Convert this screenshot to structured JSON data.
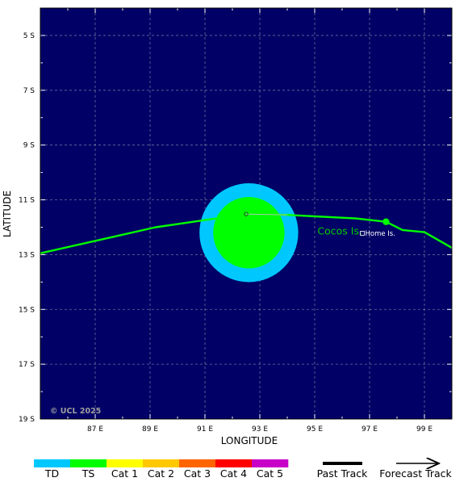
{
  "map": {
    "background_color": "#000066",
    "grid_color": "#c8c8c8",
    "lon_range": [
      85,
      100
    ],
    "lat_range": [
      -19,
      -4
    ],
    "x_axis_title": "LONGITUDE",
    "y_axis_title": "LATITUDE",
    "lon_ticks": [
      {
        "value": 87,
        "label": "87 E"
      },
      {
        "value": 89,
        "label": "89 E"
      },
      {
        "value": 91,
        "label": "91 E"
      },
      {
        "value": 93,
        "label": "93 E"
      },
      {
        "value": 95,
        "label": "95 E"
      },
      {
        "value": 97,
        "label": "97 E"
      },
      {
        "value": 99,
        "label": "99 E"
      }
    ],
    "lat_ticks": [
      {
        "value": -5,
        "label": "5 S"
      },
      {
        "value": -7,
        "label": "7 S"
      },
      {
        "value": -9,
        "label": "9 S"
      },
      {
        "value": -11,
        "label": "11 S"
      },
      {
        "value": -13,
        "label": "13 S"
      },
      {
        "value": -15,
        "label": "15 S"
      },
      {
        "value": -17,
        "label": "17 S"
      },
      {
        "value": -19,
        "label": "19 S"
      }
    ],
    "copyright": "© UCL 2025",
    "copyright_color": "#a0a0a0"
  },
  "storm": {
    "center": {
      "lon": 92.6,
      "lat": -12.2
    },
    "td_radius_deg": 1.8,
    "ts_radius_deg": 1.3,
    "td_color": "#00c8ff",
    "ts_color": "#00ff00",
    "track_color": "#00ff00",
    "track_points": [
      {
        "lon": 85.0,
        "lat": -12.95
      },
      {
        "lon": 89.2,
        "lat": -12.0
      },
      {
        "lon": 92.5,
        "lat": -11.52
      },
      {
        "lon": 94.0,
        "lat": -11.55
      },
      {
        "lon": 96.5,
        "lat": -11.68
      },
      {
        "lon": 97.6,
        "lat": -11.8
      },
      {
        "lon": 98.2,
        "lat": -12.1
      },
      {
        "lon": 99.0,
        "lat": -12.18
      },
      {
        "lon": 100.0,
        "lat": -12.75
      }
    ],
    "past_track_points": [
      {
        "lon": 92.5,
        "lat": -11.52
      },
      {
        "lon": 94.0,
        "lat": -11.55
      }
    ],
    "current_marker": {
      "lon": 92.5,
      "lat": -11.52
    },
    "forecast_point": {
      "lon": 97.6,
      "lat": -11.8
    }
  },
  "places": [
    {
      "name": "Cocos Is.",
      "lon": 95.1,
      "lat": -12.15,
      "color": "#00cc00",
      "size": "large"
    },
    {
      "name": "Home Is.",
      "lon": 96.75,
      "lat": -12.22,
      "color": "#ffffff",
      "size": "small",
      "marker": true
    }
  ],
  "legend": {
    "categories": [
      {
        "label": "TD",
        "color": "#00c8ff"
      },
      {
        "label": "TS",
        "color": "#00ff00"
      },
      {
        "label": "Cat 1",
        "color": "#ffff00"
      },
      {
        "label": "Cat 2",
        "color": "#ffc800"
      },
      {
        "label": "Cat 3",
        "color": "#ff6400"
      },
      {
        "label": "Cat 4",
        "color": "#ff0000"
      },
      {
        "label": "Cat 5",
        "color": "#c800c8"
      }
    ],
    "past_track_label": "Past Track",
    "forecast_track_label": "Forecast Track"
  }
}
